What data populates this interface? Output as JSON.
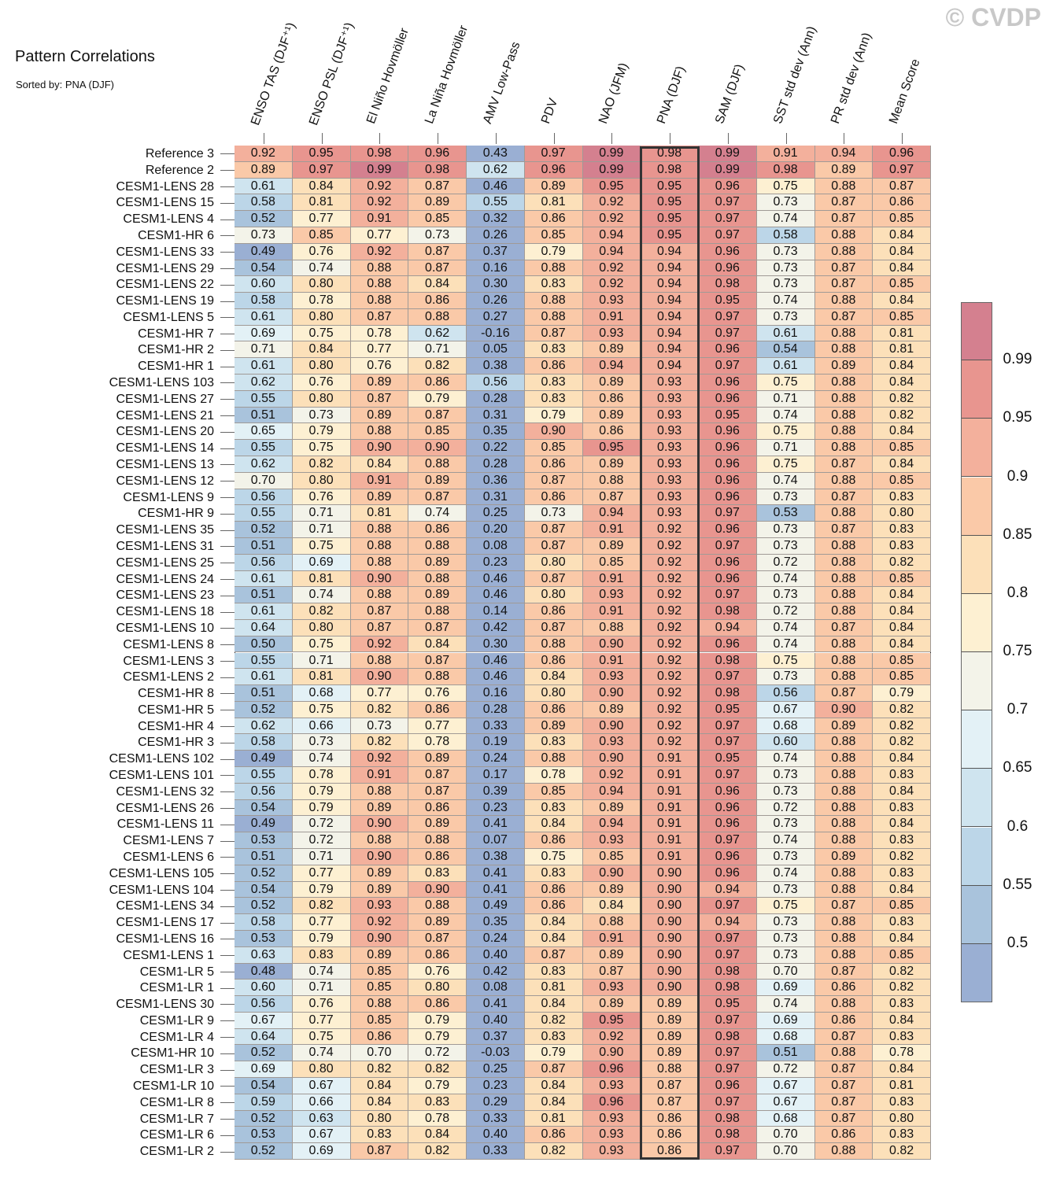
{
  "title": "Pattern Correlations",
  "subtitle": "Sorted by: PNA (DJF)",
  "watermark": "© CVDP",
  "chart_data": {
    "type": "heatmap",
    "highlighted_column": "PNA (DJF)",
    "columns": [
      "ENSO TAS (DJF⁺¹)",
      "ENSO PSL (DJF⁺¹)",
      "El Niño Hovmöller",
      "La Niña Hovmöller",
      "AMV Low-Pass",
      "PDV",
      "NAO (JFM)",
      "PNA (DJF)",
      "SAM (DJF)",
      "SST std dev (Ann)",
      "PR std dev (Ann)",
      "Mean Score"
    ],
    "rows": [
      {
        "name": "Reference 3",
        "values": [
          0.92,
          0.95,
          0.98,
          0.96,
          0.43,
          0.97,
          0.99,
          0.98,
          0.99,
          0.91,
          0.94,
          0.96
        ]
      },
      {
        "name": "Reference 2",
        "values": [
          0.89,
          0.97,
          0.99,
          0.98,
          0.62,
          0.96,
          0.99,
          0.98,
          0.99,
          0.98,
          0.89,
          0.97
        ]
      },
      {
        "name": "CESM1-LENS 28",
        "values": [
          0.61,
          0.84,
          0.92,
          0.87,
          0.46,
          0.89,
          0.95,
          0.95,
          0.96,
          0.75,
          0.88,
          0.87
        ]
      },
      {
        "name": "CESM1-LENS 15",
        "values": [
          0.58,
          0.81,
          0.92,
          0.89,
          0.55,
          0.81,
          0.92,
          0.95,
          0.97,
          0.73,
          0.87,
          0.86
        ]
      },
      {
        "name": "CESM1-LENS 4",
        "values": [
          0.52,
          0.77,
          0.91,
          0.85,
          0.32,
          0.86,
          0.92,
          0.95,
          0.97,
          0.74,
          0.87,
          0.85
        ]
      },
      {
        "name": "CESM1-HR 6",
        "values": [
          0.73,
          0.85,
          0.77,
          0.73,
          0.26,
          0.85,
          0.94,
          0.95,
          0.97,
          0.58,
          0.88,
          0.84
        ]
      },
      {
        "name": "CESM1-LENS 33",
        "values": [
          0.49,
          0.76,
          0.92,
          0.87,
          0.37,
          0.79,
          0.94,
          0.94,
          0.96,
          0.73,
          0.88,
          0.84
        ]
      },
      {
        "name": "CESM1-LENS 29",
        "values": [
          0.54,
          0.74,
          0.88,
          0.87,
          0.16,
          0.88,
          0.92,
          0.94,
          0.96,
          0.73,
          0.87,
          0.84
        ]
      },
      {
        "name": "CESM1-LENS 22",
        "values": [
          0.6,
          0.8,
          0.88,
          0.84,
          0.3,
          0.83,
          0.92,
          0.94,
          0.98,
          0.73,
          0.87,
          0.85
        ]
      },
      {
        "name": "CESM1-LENS 19",
        "values": [
          0.58,
          0.78,
          0.88,
          0.86,
          0.26,
          0.88,
          0.93,
          0.94,
          0.95,
          0.74,
          0.88,
          0.84
        ]
      },
      {
        "name": "CESM1-LENS 5",
        "values": [
          0.61,
          0.8,
          0.87,
          0.88,
          0.27,
          0.88,
          0.91,
          0.94,
          0.97,
          0.73,
          0.87,
          0.85
        ]
      },
      {
        "name": "CESM1-HR 7",
        "values": [
          0.69,
          0.75,
          0.78,
          0.62,
          -0.16,
          0.87,
          0.93,
          0.94,
          0.97,
          0.61,
          0.88,
          0.81
        ]
      },
      {
        "name": "CESM1-HR 2",
        "values": [
          0.71,
          0.84,
          0.77,
          0.71,
          0.05,
          0.83,
          0.89,
          0.94,
          0.96,
          0.54,
          0.88,
          0.81
        ]
      },
      {
        "name": "CESM1-HR 1",
        "values": [
          0.61,
          0.8,
          0.76,
          0.82,
          0.38,
          0.86,
          0.94,
          0.94,
          0.97,
          0.61,
          0.89,
          0.84
        ]
      },
      {
        "name": "CESM1-LENS 103",
        "values": [
          0.62,
          0.76,
          0.89,
          0.86,
          0.56,
          0.83,
          0.89,
          0.93,
          0.96,
          0.75,
          0.88,
          0.84
        ]
      },
      {
        "name": "CESM1-LENS 27",
        "values": [
          0.55,
          0.8,
          0.87,
          0.79,
          0.28,
          0.83,
          0.86,
          0.93,
          0.96,
          0.71,
          0.88,
          0.82
        ]
      },
      {
        "name": "CESM1-LENS 21",
        "values": [
          0.51,
          0.73,
          0.89,
          0.87,
          0.31,
          0.79,
          0.89,
          0.93,
          0.95,
          0.74,
          0.88,
          0.82
        ]
      },
      {
        "name": "CESM1-LENS 20",
        "values": [
          0.65,
          0.79,
          0.88,
          0.85,
          0.35,
          0.9,
          0.86,
          0.93,
          0.96,
          0.75,
          0.88,
          0.84
        ]
      },
      {
        "name": "CESM1-LENS 14",
        "values": [
          0.55,
          0.75,
          0.9,
          0.9,
          0.22,
          0.85,
          0.95,
          0.93,
          0.96,
          0.71,
          0.88,
          0.85
        ]
      },
      {
        "name": "CESM1-LENS 13",
        "values": [
          0.62,
          0.82,
          0.84,
          0.88,
          0.28,
          0.86,
          0.89,
          0.93,
          0.96,
          0.75,
          0.87,
          0.84
        ]
      },
      {
        "name": "CESM1-LENS 12",
        "values": [
          0.7,
          0.8,
          0.91,
          0.89,
          0.36,
          0.87,
          0.88,
          0.93,
          0.96,
          0.74,
          0.88,
          0.85
        ]
      },
      {
        "name": "CESM1-LENS 9",
        "values": [
          0.56,
          0.76,
          0.89,
          0.87,
          0.31,
          0.86,
          0.87,
          0.93,
          0.96,
          0.73,
          0.87,
          0.83
        ]
      },
      {
        "name": "CESM1-HR 9",
        "values": [
          0.55,
          0.71,
          0.81,
          0.74,
          0.25,
          0.73,
          0.94,
          0.93,
          0.97,
          0.53,
          0.88,
          0.8
        ]
      },
      {
        "name": "CESM1-LENS 35",
        "values": [
          0.52,
          0.71,
          0.88,
          0.86,
          0.2,
          0.87,
          0.91,
          0.92,
          0.96,
          0.73,
          0.87,
          0.83
        ]
      },
      {
        "name": "CESM1-LENS 31",
        "values": [
          0.51,
          0.75,
          0.88,
          0.88,
          0.08,
          0.87,
          0.89,
          0.92,
          0.97,
          0.73,
          0.88,
          0.83
        ]
      },
      {
        "name": "CESM1-LENS 25",
        "values": [
          0.56,
          0.69,
          0.88,
          0.89,
          0.23,
          0.8,
          0.85,
          0.92,
          0.96,
          0.72,
          0.88,
          0.82
        ]
      },
      {
        "name": "CESM1-LENS 24",
        "values": [
          0.61,
          0.81,
          0.9,
          0.88,
          0.46,
          0.87,
          0.91,
          0.92,
          0.96,
          0.74,
          0.88,
          0.85
        ]
      },
      {
        "name": "CESM1-LENS 23",
        "values": [
          0.51,
          0.74,
          0.88,
          0.89,
          0.46,
          0.8,
          0.93,
          0.92,
          0.97,
          0.73,
          0.88,
          0.84
        ]
      },
      {
        "name": "CESM1-LENS 18",
        "values": [
          0.61,
          0.82,
          0.87,
          0.88,
          0.14,
          0.86,
          0.91,
          0.92,
          0.98,
          0.72,
          0.88,
          0.84
        ]
      },
      {
        "name": "CESM1-LENS 10",
        "values": [
          0.64,
          0.8,
          0.87,
          0.87,
          0.42,
          0.87,
          0.88,
          0.92,
          0.94,
          0.74,
          0.87,
          0.84
        ]
      },
      {
        "name": "CESM1-LENS 8",
        "values": [
          0.5,
          0.75,
          0.92,
          0.84,
          0.3,
          0.88,
          0.9,
          0.92,
          0.96,
          0.74,
          0.88,
          0.84
        ]
      },
      {
        "name": "CESM1-LENS 3",
        "values": [
          0.55,
          0.71,
          0.88,
          0.87,
          0.46,
          0.86,
          0.91,
          0.92,
          0.98,
          0.75,
          0.88,
          0.85
        ]
      },
      {
        "name": "CESM1-LENS 2",
        "values": [
          0.61,
          0.81,
          0.9,
          0.88,
          0.46,
          0.84,
          0.93,
          0.92,
          0.97,
          0.73,
          0.88,
          0.85
        ]
      },
      {
        "name": "CESM1-HR 8",
        "values": [
          0.51,
          0.68,
          0.77,
          0.76,
          0.16,
          0.8,
          0.9,
          0.92,
          0.98,
          0.56,
          0.87,
          0.79
        ]
      },
      {
        "name": "CESM1-HR 5",
        "values": [
          0.52,
          0.75,
          0.82,
          0.86,
          0.28,
          0.86,
          0.89,
          0.92,
          0.95,
          0.67,
          0.9,
          0.82
        ]
      },
      {
        "name": "CESM1-HR 4",
        "values": [
          0.62,
          0.66,
          0.73,
          0.77,
          0.33,
          0.89,
          0.9,
          0.92,
          0.97,
          0.68,
          0.89,
          0.82
        ]
      },
      {
        "name": "CESM1-HR 3",
        "values": [
          0.58,
          0.73,
          0.82,
          0.78,
          0.19,
          0.83,
          0.93,
          0.92,
          0.97,
          0.6,
          0.88,
          0.82
        ]
      },
      {
        "name": "CESM1-LENS 102",
        "values": [
          0.49,
          0.74,
          0.92,
          0.89,
          0.24,
          0.88,
          0.9,
          0.91,
          0.95,
          0.74,
          0.88,
          0.84
        ]
      },
      {
        "name": "CESM1-LENS 101",
        "values": [
          0.55,
          0.78,
          0.91,
          0.87,
          0.17,
          0.78,
          0.92,
          0.91,
          0.97,
          0.73,
          0.88,
          0.83
        ]
      },
      {
        "name": "CESM1-LENS 32",
        "values": [
          0.56,
          0.79,
          0.88,
          0.87,
          0.39,
          0.85,
          0.94,
          0.91,
          0.96,
          0.73,
          0.88,
          0.84
        ]
      },
      {
        "name": "CESM1-LENS 26",
        "values": [
          0.54,
          0.79,
          0.89,
          0.86,
          0.23,
          0.83,
          0.89,
          0.91,
          0.96,
          0.72,
          0.88,
          0.83
        ]
      },
      {
        "name": "CESM1-LENS 11",
        "values": [
          0.49,
          0.72,
          0.9,
          0.89,
          0.41,
          0.84,
          0.94,
          0.91,
          0.96,
          0.73,
          0.88,
          0.84
        ]
      },
      {
        "name": "CESM1-LENS 7",
        "values": [
          0.53,
          0.72,
          0.88,
          0.88,
          0.07,
          0.86,
          0.93,
          0.91,
          0.97,
          0.74,
          0.88,
          0.83
        ]
      },
      {
        "name": "CESM1-LENS 6",
        "values": [
          0.51,
          0.71,
          0.9,
          0.86,
          0.38,
          0.75,
          0.85,
          0.91,
          0.96,
          0.73,
          0.89,
          0.82
        ]
      },
      {
        "name": "CESM1-LENS 105",
        "values": [
          0.52,
          0.77,
          0.89,
          0.83,
          0.41,
          0.83,
          0.9,
          0.9,
          0.96,
          0.74,
          0.88,
          0.83
        ]
      },
      {
        "name": "CESM1-LENS 104",
        "values": [
          0.54,
          0.79,
          0.89,
          0.9,
          0.41,
          0.86,
          0.89,
          0.9,
          0.94,
          0.73,
          0.88,
          0.84
        ]
      },
      {
        "name": "CESM1-LENS 34",
        "values": [
          0.52,
          0.82,
          0.93,
          0.88,
          0.49,
          0.86,
          0.84,
          0.9,
          0.97,
          0.75,
          0.87,
          0.85
        ]
      },
      {
        "name": "CESM1-LENS 17",
        "values": [
          0.58,
          0.77,
          0.92,
          0.89,
          0.35,
          0.84,
          0.88,
          0.9,
          0.94,
          0.73,
          0.88,
          0.83
        ]
      },
      {
        "name": "CESM1-LENS 16",
        "values": [
          0.53,
          0.79,
          0.9,
          0.87,
          0.24,
          0.84,
          0.91,
          0.9,
          0.97,
          0.73,
          0.88,
          0.84
        ]
      },
      {
        "name": "CESM1-LENS 1",
        "values": [
          0.63,
          0.83,
          0.89,
          0.86,
          0.4,
          0.87,
          0.89,
          0.9,
          0.97,
          0.73,
          0.88,
          0.85
        ]
      },
      {
        "name": "CESM1-LR 5",
        "values": [
          0.48,
          0.74,
          0.85,
          0.76,
          0.42,
          0.83,
          0.87,
          0.9,
          0.98,
          0.7,
          0.87,
          0.82
        ]
      },
      {
        "name": "CESM1-LR 1",
        "values": [
          0.6,
          0.71,
          0.85,
          0.8,
          0.08,
          0.81,
          0.93,
          0.9,
          0.98,
          0.69,
          0.86,
          0.82
        ]
      },
      {
        "name": "CESM1-LENS 30",
        "values": [
          0.56,
          0.76,
          0.88,
          0.86,
          0.41,
          0.84,
          0.89,
          0.89,
          0.95,
          0.74,
          0.88,
          0.83
        ]
      },
      {
        "name": "CESM1-LR 9",
        "values": [
          0.67,
          0.77,
          0.85,
          0.79,
          0.4,
          0.82,
          0.95,
          0.89,
          0.97,
          0.69,
          0.86,
          0.84
        ]
      },
      {
        "name": "CESM1-LR 4",
        "values": [
          0.64,
          0.75,
          0.86,
          0.79,
          0.37,
          0.83,
          0.92,
          0.89,
          0.98,
          0.68,
          0.87,
          0.83
        ]
      },
      {
        "name": "CESM1-HR 10",
        "values": [
          0.52,
          0.74,
          0.7,
          0.72,
          -0.03,
          0.79,
          0.9,
          0.89,
          0.97,
          0.51,
          0.88,
          0.78
        ]
      },
      {
        "name": "CESM1-LR 3",
        "values": [
          0.69,
          0.8,
          0.82,
          0.82,
          0.25,
          0.87,
          0.96,
          0.88,
          0.97,
          0.72,
          0.87,
          0.84
        ]
      },
      {
        "name": "CESM1-LR 10",
        "values": [
          0.54,
          0.67,
          0.84,
          0.79,
          0.23,
          0.84,
          0.93,
          0.87,
          0.96,
          0.67,
          0.87,
          0.81
        ]
      },
      {
        "name": "CESM1-LR 8",
        "values": [
          0.59,
          0.66,
          0.84,
          0.83,
          0.29,
          0.84,
          0.96,
          0.87,
          0.97,
          0.67,
          0.87,
          0.83
        ]
      },
      {
        "name": "CESM1-LR 7",
        "values": [
          0.52,
          0.63,
          0.8,
          0.78,
          0.33,
          0.81,
          0.93,
          0.86,
          0.98,
          0.68,
          0.87,
          0.8
        ]
      },
      {
        "name": "CESM1-LR 6",
        "values": [
          0.53,
          0.67,
          0.83,
          0.84,
          0.4,
          0.86,
          0.93,
          0.86,
          0.98,
          0.7,
          0.86,
          0.83
        ]
      },
      {
        "name": "CESM1-LR 2",
        "values": [
          0.52,
          0.69,
          0.87,
          0.82,
          0.33,
          0.82,
          0.93,
          0.86,
          0.97,
          0.7,
          0.88,
          0.82
        ]
      }
    ],
    "colorbar": {
      "levels": [
        0.5,
        0.55,
        0.6,
        0.65,
        0.7,
        0.75,
        0.8,
        0.85,
        0.9,
        0.95,
        0.99
      ],
      "labels": [
        "0.5",
        "0.55",
        "0.6",
        "0.65",
        "0.7",
        "0.75",
        "0.8",
        "0.85",
        "0.9",
        "0.95",
        "0.99"
      ],
      "colors": [
        "#9aafd3",
        "#a9c3dc",
        "#bcd6e8",
        "#cfe4ef",
        "#e3f1f6",
        "#f3f3e9",
        "#fdf0d2",
        "#fce0b9",
        "#fac9a8",
        "#f3b09c",
        "#e8958f",
        "#d4808f"
      ]
    }
  }
}
